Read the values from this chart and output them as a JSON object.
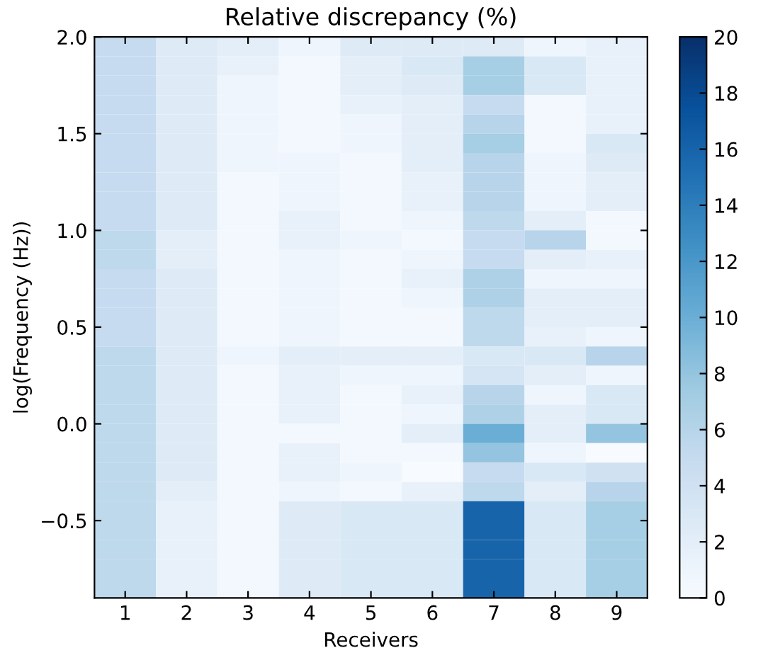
{
  "chart_data": {
    "type": "heatmap",
    "title": "Relative discrepancy (%)",
    "xlabel": "Receivers",
    "ylabel": "log(Frequency (Hz))",
    "categories": [
      "1",
      "2",
      "3",
      "4",
      "5",
      "6",
      "7",
      "8",
      "9"
    ],
    "ylim": [
      -0.9,
      2.0
    ],
    "yticks": [
      {
        "value": -0.5,
        "label": "−0.5"
      },
      {
        "value": 0.0,
        "label": "0.0"
      },
      {
        "value": 0.5,
        "label": "0.5"
      },
      {
        "value": 1.0,
        "label": "1.0"
      },
      {
        "value": 1.5,
        "label": "1.5"
      },
      {
        "value": 2.0,
        "label": "2.0"
      }
    ],
    "clim": [
      0,
      20
    ],
    "cticks": [
      0,
      2,
      4,
      6,
      8,
      10,
      12,
      14,
      16,
      18,
      20
    ],
    "cells": [
      [
        5,
        2.5,
        2,
        1,
        2.5,
        2.5,
        2.5,
        1,
        1.5
      ],
      [
        5,
        2.5,
        1.5,
        0.5,
        2,
        3,
        7,
        3,
        1.5
      ],
      [
        5,
        2.5,
        1,
        0.5,
        2,
        2.5,
        7,
        3,
        1.5
      ],
      [
        5,
        2.5,
        1,
        0.5,
        1.5,
        2,
        5,
        0.5,
        1.5
      ],
      [
        5,
        2.5,
        1,
        0.5,
        1,
        2,
        6,
        0.5,
        1.5
      ],
      [
        5,
        2.5,
        1,
        0.5,
        1,
        2,
        7,
        0.5,
        3
      ],
      [
        5,
        2.5,
        1,
        1,
        0.5,
        2,
        6,
        1,
        2.5
      ],
      [
        5,
        2.5,
        0.5,
        1,
        0.5,
        1.5,
        6,
        1,
        2
      ],
      [
        5,
        2.5,
        0.5,
        1,
        0.5,
        1.5,
        6,
        1,
        2
      ],
      [
        5,
        2.5,
        0.5,
        1.5,
        0.5,
        1,
        5.5,
        2,
        0.5
      ],
      [
        5.5,
        2,
        0.5,
        1.5,
        1,
        0.5,
        5,
        6,
        0.5
      ],
      [
        5.5,
        2,
        0.5,
        1,
        0.5,
        1,
        5,
        2,
        1.5
      ],
      [
        5,
        2.5,
        0.5,
        1,
        0.5,
        1.5,
        6.5,
        1,
        1
      ],
      [
        5,
        2.5,
        0.5,
        1,
        0.5,
        1,
        6.5,
        2,
        2
      ],
      [
        5,
        2.5,
        0.5,
        1,
        0.5,
        0.5,
        5.5,
        2,
        2
      ],
      [
        5,
        2.5,
        0.5,
        1,
        0.5,
        0.5,
        5.5,
        1.5,
        1
      ],
      [
        5.5,
        2.5,
        1,
        2,
        2,
        2,
        3,
        3,
        6
      ],
      [
        5.5,
        2.5,
        0.5,
        1.5,
        1,
        1,
        3.5,
        2,
        1
      ],
      [
        5.5,
        2.5,
        0.5,
        1.5,
        0.5,
        1.5,
        6,
        1,
        3
      ],
      [
        5.5,
        2.5,
        0.5,
        1.5,
        0.5,
        1,
        6.5,
        2,
        3
      ],
      [
        5.5,
        2.5,
        0.5,
        0.5,
        0.5,
        2,
        10,
        2,
        8
      ],
      [
        5.5,
        2.5,
        0.5,
        1.5,
        0.5,
        0.5,
        8,
        1,
        0
      ],
      [
        5.5,
        2.5,
        0.5,
        1.5,
        1,
        0,
        5,
        3,
        4
      ],
      [
        5.5,
        2,
        0.5,
        1,
        0.5,
        1.5,
        5.5,
        2,
        6
      ],
      [
        5.5,
        1.5,
        0.5,
        2.5,
        3,
        3,
        16,
        3,
        7
      ],
      [
        5.5,
        1.5,
        0.5,
        2.5,
        3,
        3,
        16,
        3,
        7
      ],
      [
        5.5,
        1.5,
        0.5,
        2.5,
        3,
        3,
        16,
        3,
        7
      ],
      [
        5.5,
        1.5,
        0.5,
        2.5,
        3,
        3,
        16,
        3,
        7
      ],
      [
        5.5,
        1.5,
        0.5,
        2.5,
        3,
        3,
        16,
        3,
        7
      ]
    ]
  }
}
